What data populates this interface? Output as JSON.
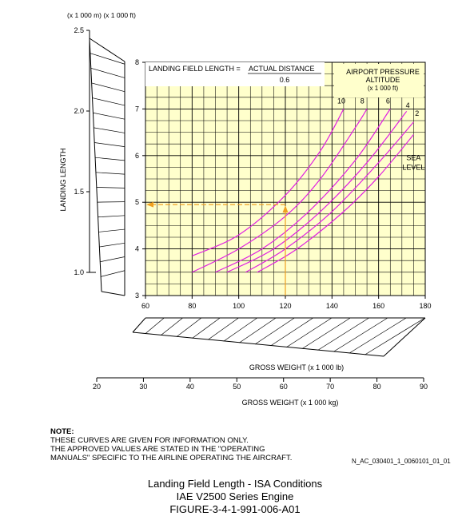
{
  "chart_data": {
    "type": "line",
    "title_parts": {
      "prefix": "LANDING FIELD LENGTH = ",
      "numerator": "ACTUAL DISTANCE",
      "denominator": "0.6"
    },
    "legend_title": [
      "AIRPORT PRESSURE",
      "ALTITUDE",
      "(x 1 000 ft)"
    ],
    "top_unit_labels": "(x 1 000 m)  (x 1 000 ft)",
    "ylabel": "LANDING LENGTH",
    "xlabel_lb": "GROSS WEIGHT (x 1 000 lb)",
    "xlabel_kg": "GROSS WEIGHT (x 1 000 kg)",
    "xlim": [
      60,
      180
    ],
    "ylim_ft": [
      3,
      8
    ],
    "xticks": [
      "60",
      "80",
      "100",
      "120",
      "140",
      "160",
      "180"
    ],
    "yticks_ft": [
      "3",
      "4",
      "5",
      "6",
      "7",
      "8"
    ],
    "yticks_m": [
      "1.0",
      "1.5",
      "2.0",
      "2.5"
    ],
    "kg_ticks": [
      "20",
      "30",
      "40",
      "50",
      "60",
      "70",
      "80",
      "90"
    ],
    "series": [
      {
        "name": "10",
        "x": [
          80,
          100,
          120,
          135,
          145
        ],
        "y": [
          3.85,
          4.3,
          5.15,
          6.1,
          7.0
        ]
      },
      {
        "name": "8",
        "x": [
          80,
          100,
          120,
          135,
          150,
          155
        ],
        "y": [
          3.5,
          4.0,
          4.7,
          5.5,
          6.6,
          7.0
        ]
      },
      {
        "name": "6",
        "x": [
          90,
          110,
          130,
          150,
          165
        ],
        "y": [
          3.5,
          4.0,
          4.8,
          5.9,
          7.0
        ]
      },
      {
        "name": "4",
        "x": [
          95,
          115,
          135,
          155,
          172
        ],
        "y": [
          3.5,
          4.0,
          4.8,
          5.85,
          6.95
        ]
      },
      {
        "name": "2",
        "x": [
          103,
          120,
          140,
          160,
          175
        ],
        "y": [
          3.5,
          4.0,
          4.8,
          5.85,
          6.72
        ]
      },
      {
        "name": "SEA LEVEL",
        "x": [
          108,
          125,
          145,
          160,
          175
        ],
        "y": [
          3.5,
          4.0,
          4.8,
          5.55,
          6.45
        ]
      }
    ],
    "series_labels": [
      {
        "text": "10",
        "x": 144,
        "y": 7.12
      },
      {
        "text": "8",
        "x": 153,
        "y": 7.12
      },
      {
        "text": "6",
        "x": 164,
        "y": 7.12
      },
      {
        "text": "4",
        "x": 172.5,
        "y": 7.02
      },
      {
        "text": "2",
        "x": 176.5,
        "y": 6.85
      },
      {
        "text": "SEA",
        "x": 175,
        "y": 5.9
      },
      {
        "text": "LEVEL",
        "x": 175,
        "y": 5.7
      }
    ],
    "example_path": {
      "weight": 120,
      "length_ft": 4.95
    },
    "background_color": "#ffffcc",
    "curve_color": "#e020e0",
    "example_color": "#f0a020"
  },
  "note": {
    "heading": "NOTE:",
    "lines": [
      "THESE CURVES ARE GIVEN FOR INFORMATION ONLY.",
      "THE APPROVED VALUES ARE STATED IN THE \"OPERATING",
      "MANUALS\" SPECIFIC TO THE AIRLINE OPERATING THE AIRCRAFT."
    ]
  },
  "ref_code": "N_AC_030401_1_0060101_01_01",
  "caption": {
    "line1": "Landing Field Length - ISA Conditions",
    "line2": "IAE V2500 Series Engine",
    "line3": "FIGURE-3-4-1-991-006-A01"
  }
}
